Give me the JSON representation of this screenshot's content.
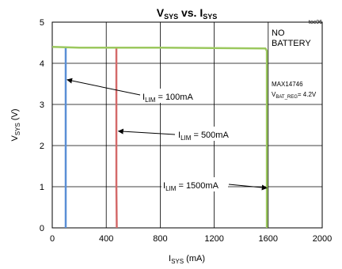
{
  "chart_data": {
    "type": "line",
    "figure_id": "toc06",
    "title": {
      "main": "V",
      "main_sub": "SYS",
      "vs": " vs. I",
      "vs_sub": "SYS"
    },
    "xlabel": {
      "main": "I",
      "sub": "SYS",
      "unit": " (mA)"
    },
    "ylabel": {
      "main": "V",
      "sub": "SYS",
      "unit": " (V)"
    },
    "xlim": [
      0,
      2000
    ],
    "ylim": [
      0,
      5
    ],
    "x_ticks": [
      0,
      400,
      800,
      1200,
      1600,
      2000
    ],
    "y_ticks": [
      0,
      1,
      2,
      3,
      4,
      5
    ],
    "grid": true,
    "series": [
      {
        "color": "#5b8fd6",
        "x": [
          100,
          100
        ],
        "y": [
          0,
          4.37
        ]
      },
      {
        "color": "#d46a6a",
        "x": [
          475,
          475,
          478
        ],
        "y": [
          4.37,
          1,
          0
        ]
      },
      {
        "color": "#9bc85e",
        "x": [
          0,
          200,
          800,
          1200,
          1580,
          1590,
          1590
        ],
        "y": [
          4.4,
          4.38,
          4.38,
          4.37,
          4.36,
          4.3,
          0
        ]
      }
    ],
    "annotations": [
      {
        "id": "ilim100",
        "label": "I",
        "sub": "LIM",
        "rest": " = 100mA",
        "arrow_to": [
          110,
          3.6
        ]
      },
      {
        "id": "ilim500",
        "label": "I",
        "sub": "LIM",
        "rest": " = 500mA",
        "arrow_to": [
          490,
          2.35
        ]
      },
      {
        "id": "ilim1500",
        "label": "I",
        "sub": "LIM",
        "rest": " = 1500mA",
        "arrow_to": [
          1590,
          0.97
        ]
      }
    ],
    "notes": {
      "no_battery_line1": "NO",
      "no_battery_line2": "BATTERY",
      "part": "MAX14746",
      "vbat_label": "V",
      "vbat_sub": "BAT_REG",
      "vbat_value": "= 4.2V"
    },
    "colors": {
      "blue": "#5b8fd6",
      "red": "#d46a6a",
      "green": "#9bc85e"
    }
  }
}
